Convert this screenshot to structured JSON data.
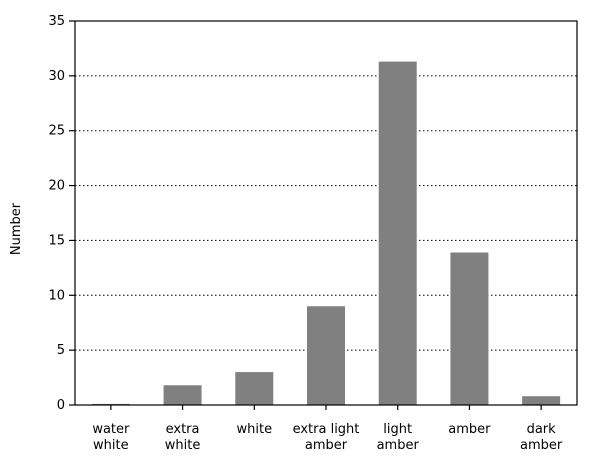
{
  "chart_data": {
    "type": "bar",
    "title": "",
    "xlabel": "",
    "ylabel": "Number",
    "ylim": [
      0,
      35
    ],
    "yticks": [
      0,
      5,
      10,
      15,
      20,
      25,
      30,
      35
    ],
    "grid": "horizontal-dotted",
    "categories": [
      [
        "water",
        "white"
      ],
      [
        "extra",
        "white"
      ],
      [
        "white"
      ],
      [
        "extra light",
        "amber"
      ],
      [
        "light",
        "amber"
      ],
      [
        "amber"
      ],
      [
        "dark",
        "amber"
      ]
    ],
    "values": [
      0.1,
      1.8,
      3.0,
      9.0,
      31.3,
      13.9,
      0.8
    ],
    "colors": {
      "bar": "#808080",
      "axis": "#000000",
      "grid": "#000000"
    }
  }
}
